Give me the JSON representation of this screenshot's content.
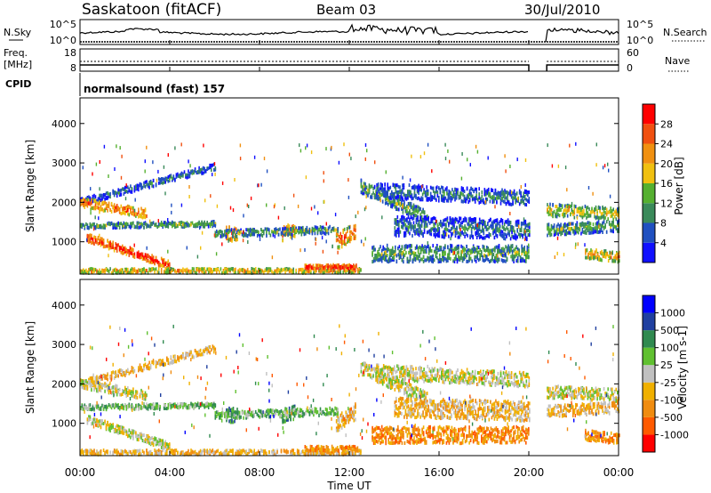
{
  "header": {
    "station": "Saskatoon (fitACF)",
    "beam": "Beam 03",
    "date": "30/Jul/2010"
  },
  "noise_panel": {
    "left_label": "N.Sky",
    "right_label": "N.Search",
    "left_ticks": [
      "10^5",
      "10^0"
    ],
    "right_ticks": [
      "10^5",
      "10^0"
    ]
  },
  "freq_panel": {
    "left_label": "Freq.",
    "left_unit": "[MHz]",
    "right_label": "Nave",
    "left_ticks": [
      "18",
      "8"
    ],
    "right_ticks": [
      "60",
      "0"
    ]
  },
  "cpid": {
    "label": "CPID",
    "value": "normalsound (fast) 157"
  },
  "time_axis": {
    "label": "Time UT",
    "ticks": [
      "00:00",
      "04:00",
      "08:00",
      "12:00",
      "16:00",
      "20:00",
      "00:00"
    ]
  },
  "colors": {
    "power": [
      "#1010ff",
      "#2050c0",
      "#3a8a5a",
      "#55b030",
      "#f0c010",
      "#f09010",
      "#f05010",
      "#ff0000"
    ],
    "velocity": [
      "#ff0000",
      "#ff5a00",
      "#f08c10",
      "#f0b000",
      "#c0c0c0",
      "#60c030",
      "#308a50",
      "#2040a0",
      "#0000ff"
    ]
  },
  "chart_data": [
    {
      "type": "heatmap",
      "name": "power",
      "ylabel": "Slant Range [km]",
      "xlabel": "",
      "y_ticks": [
        "1000",
        "2000",
        "3000",
        "4000"
      ],
      "ylim": [
        180,
        4650
      ],
      "xlim_hours": [
        0,
        24
      ],
      "colorbar": {
        "label": "Power [dB]",
        "ticks": [
          "4",
          "8",
          "12",
          "16",
          "20",
          "24",
          "28"
        ],
        "range": [
          0,
          32
        ]
      }
    },
    {
      "type": "heatmap",
      "name": "velocity",
      "ylabel": "Slant Range [km]",
      "xlabel": "Time UT",
      "y_ticks": [
        "1000",
        "2000",
        "3000",
        "4000"
      ],
      "ylim": [
        180,
        4650
      ],
      "xlim_hours": [
        0,
        24
      ],
      "colorbar": {
        "label": "Velocity [m s-1]",
        "ticks": [
          "1000",
          "500",
          "100",
          "25",
          "-25",
          "-100",
          "-500",
          "-1000"
        ]
      }
    }
  ]
}
